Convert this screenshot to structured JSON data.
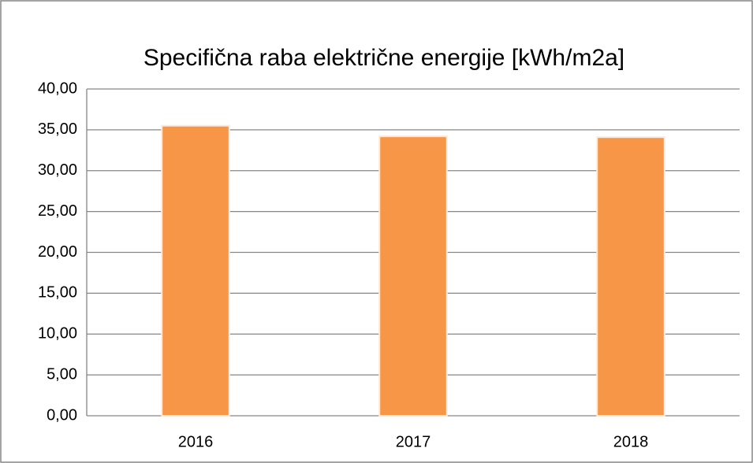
{
  "chart_data": {
    "type": "bar",
    "title": "Specifična raba električne energije [kWh/m2a]",
    "categories": [
      "2016",
      "2017",
      "2018"
    ],
    "values": [
      35.5,
      34.2,
      34.1
    ],
    "color": "#f79646",
    "ylim": [
      0,
      40
    ],
    "yticks": [
      {
        "value": 0,
        "label": "0,00"
      },
      {
        "value": 5,
        "label": "5,00"
      },
      {
        "value": 10,
        "label": "10,00"
      },
      {
        "value": 15,
        "label": "15,00"
      },
      {
        "value": 20,
        "label": "20,00"
      },
      {
        "value": 25,
        "label": "25,00"
      },
      {
        "value": 30,
        "label": "30,00"
      },
      {
        "value": 35,
        "label": "35,00"
      },
      {
        "value": 40,
        "label": "40,00"
      }
    ],
    "grid": true
  }
}
